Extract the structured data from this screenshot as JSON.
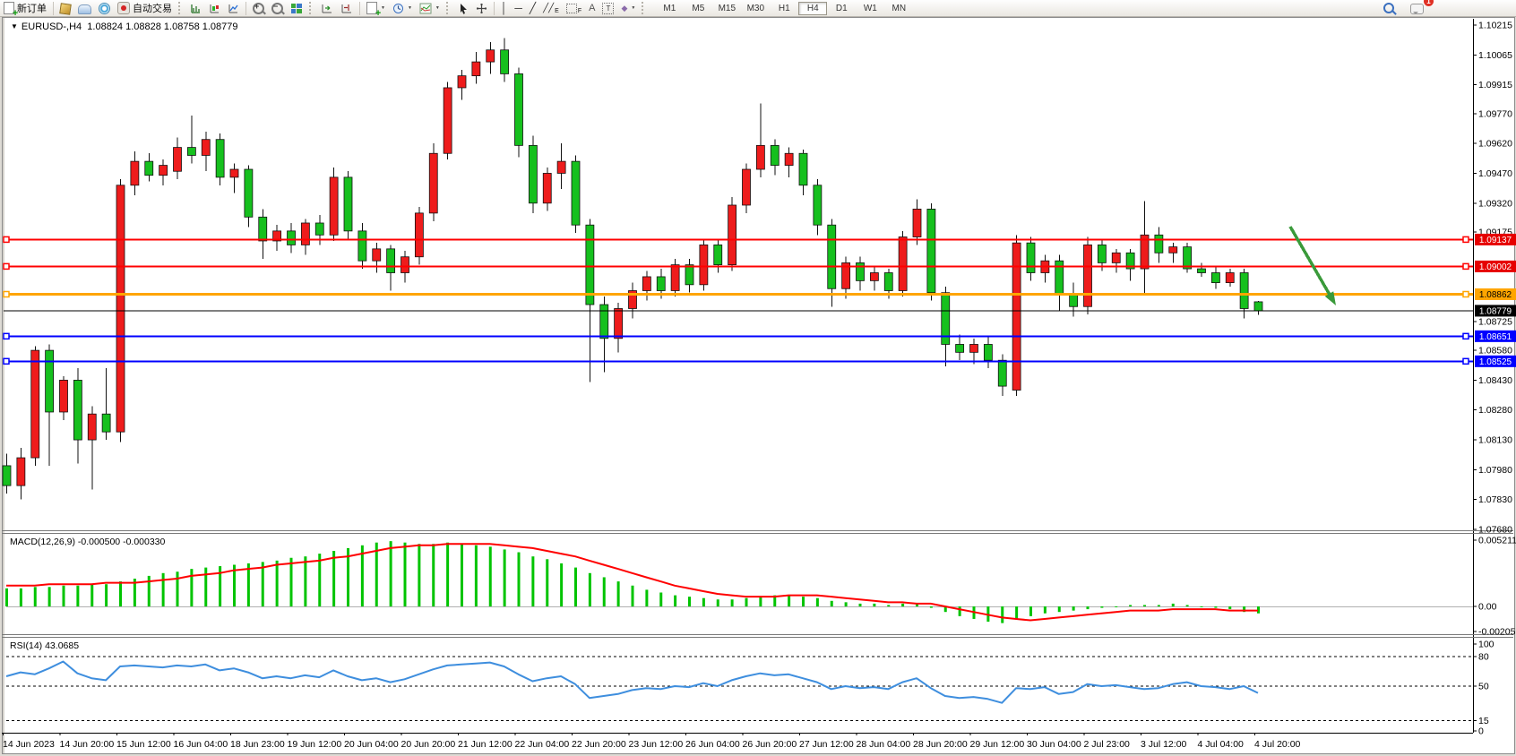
{
  "toolbar": {
    "new_order_label": "新订单",
    "autotrade_label": "自动交易",
    "timeframes": [
      {
        "label": "M1",
        "active": false
      },
      {
        "label": "M5",
        "active": false
      },
      {
        "label": "M15",
        "active": false
      },
      {
        "label": "M30",
        "active": false
      },
      {
        "label": "H1",
        "active": false
      },
      {
        "label": "H4",
        "active": true
      },
      {
        "label": "D1",
        "active": false
      },
      {
        "label": "W1",
        "active": false
      },
      {
        "label": "MN",
        "active": false
      }
    ],
    "notification_count": "1"
  },
  "chart": {
    "title_symbol": "EURUSD-,H4",
    "title_ohlc": "1.08824 1.08828 1.08758 1.08779"
  },
  "chart_data": {
    "type": "candlestick",
    "symbol": "EURUSD-",
    "timeframe": "H4",
    "current_bar": {
      "open": 1.08824,
      "high": 1.08828,
      "low": 1.08758,
      "close": 1.08779
    },
    "colors": {
      "up": "#ee1c1c",
      "down": "#16c01e",
      "wick": "#111111",
      "macd_hist": "#00c400",
      "macd_signal": "#ff0000",
      "rsi_line": "#3e8ede",
      "hline_red": "#ff0000",
      "hline_orange": "#ffa500",
      "hline_blue": "#0000ff",
      "hline_black": "#000000",
      "arrow": "#3a9a3a"
    },
    "y_axis": {
      "top_price": 1.10215,
      "bottom_price": 1.0768,
      "ticks": [
        1.10215,
        1.10065,
        1.09915,
        1.0977,
        1.0962,
        1.0947,
        1.0932,
        1.09175,
        1.08725,
        1.0858,
        1.0843,
        1.0828,
        1.0813,
        1.0798,
        1.0783,
        1.0768
      ]
    },
    "x_labels": [
      "14 Jun 2023",
      "14 Jun 20:00",
      "15 Jun 12:00",
      "16 Jun 04:00",
      "18 Jun 23:00",
      "19 Jun 12:00",
      "20 Jun 04:00",
      "20 Jun 20:00",
      "21 Jun 12:00",
      "22 Jun 04:00",
      "22 Jun 20:00",
      "23 Jun 12:00",
      "26 Jun 04:00",
      "26 Jun 20:00",
      "27 Jun 12:00",
      "28 Jun 04:00",
      "28 Jun 20:00",
      "29 Jun 12:00",
      "30 Jun 04:00",
      "2 Jul 23:00",
      "3 Jul 12:00",
      "4 Jul 04:00",
      "4 Jul 20:00"
    ],
    "candles": [
      [
        1.08,
        1.0806,
        1.0786,
        1.079
      ],
      [
        1.079,
        1.0809,
        1.0783,
        1.0804
      ],
      [
        1.0804,
        1.086,
        1.08,
        1.0858
      ],
      [
        1.0858,
        1.0861,
        1.08,
        1.0827
      ],
      [
        1.0827,
        1.0845,
        1.0823,
        1.0843
      ],
      [
        1.0843,
        1.0849,
        1.0801,
        1.0813
      ],
      [
        1.0813,
        1.083,
        1.0788,
        1.0826
      ],
      [
        1.0826,
        1.0849,
        1.0813,
        1.0817
      ],
      [
        1.0817,
        1.0944,
        1.0812,
        1.0941
      ],
      [
        1.0941,
        1.0958,
        1.0936,
        1.0953
      ],
      [
        1.0953,
        1.0957,
        1.0943,
        1.0946
      ],
      [
        1.0946,
        1.0954,
        1.0941,
        1.0951
      ],
      [
        1.0948,
        1.0965,
        1.0944,
        1.096
      ],
      [
        1.096,
        1.0976,
        1.0952,
        1.0956
      ],
      [
        1.0956,
        1.0968,
        1.0948,
        1.0964
      ],
      [
        1.0964,
        1.0967,
        1.0941,
        1.0945
      ],
      [
        1.0945,
        1.0952,
        1.0937,
        1.0949
      ],
      [
        1.0949,
        1.0951,
        1.092,
        1.0925
      ],
      [
        1.0925,
        1.0929,
        1.0904,
        1.0913
      ],
      [
        1.0913,
        1.0921,
        1.0908,
        1.0918
      ],
      [
        1.0918,
        1.0922,
        1.0907,
        1.0911
      ],
      [
        1.0911,
        1.0924,
        1.0906,
        1.0922
      ],
      [
        1.0922,
        1.0926,
        1.0911,
        1.0916
      ],
      [
        1.0916,
        1.095,
        1.0913,
        1.0945
      ],
      [
        1.0945,
        1.0948,
        1.0914,
        1.0918
      ],
      [
        1.0918,
        1.0922,
        1.0899,
        1.0903
      ],
      [
        1.0903,
        1.0912,
        1.0897,
        1.0909
      ],
      [
        1.0909,
        1.0911,
        1.0888,
        1.0897
      ],
      [
        1.0897,
        1.0908,
        1.0892,
        1.0905
      ],
      [
        1.0905,
        1.093,
        1.0901,
        1.0927
      ],
      [
        1.0927,
        1.0962,
        1.0923,
        1.0957
      ],
      [
        1.0957,
        1.0993,
        1.0954,
        1.099
      ],
      [
        1.099,
        1.0999,
        1.0984,
        1.0996
      ],
      [
        1.0996,
        1.1008,
        1.0992,
        1.1003
      ],
      [
        1.1003,
        1.1013,
        1.0997,
        1.1009
      ],
      [
        1.1009,
        1.1015,
        1.0993,
        1.0997
      ],
      [
        1.0997,
        1.1,
        1.0955,
        1.0961
      ],
      [
        1.0961,
        1.0966,
        1.0927,
        1.0932
      ],
      [
        1.0932,
        1.095,
        1.0928,
        1.0947
      ],
      [
        1.0947,
        1.0962,
        1.0939,
        1.0953
      ],
      [
        1.0953,
        1.0956,
        1.0917,
        1.0921
      ],
      [
        1.0921,
        1.0924,
        1.0842,
        1.0881
      ],
      [
        1.0881,
        1.0885,
        1.0847,
        1.0864
      ],
      [
        1.0864,
        1.0882,
        1.0857,
        1.0879
      ],
      [
        1.0879,
        1.0892,
        1.0874,
        1.0888
      ],
      [
        1.0888,
        1.0898,
        1.0883,
        1.0895
      ],
      [
        1.0895,
        1.0899,
        1.0884,
        1.0888
      ],
      [
        1.0888,
        1.0904,
        1.0885,
        1.0901
      ],
      [
        1.0901,
        1.0904,
        1.0887,
        1.0891
      ],
      [
        1.0891,
        1.0914,
        1.0888,
        1.0911
      ],
      [
        1.0911,
        1.0914,
        1.0897,
        1.0901
      ],
      [
        1.0901,
        1.0935,
        1.0898,
        1.0931
      ],
      [
        1.0931,
        1.0952,
        1.0927,
        1.0949
      ],
      [
        1.0949,
        1.0982,
        1.0945,
        1.0961
      ],
      [
        1.0961,
        1.0964,
        1.0946,
        1.0951
      ],
      [
        1.0951,
        1.096,
        1.0945,
        1.0957
      ],
      [
        1.0957,
        1.0959,
        1.0936,
        1.0941
      ],
      [
        1.0941,
        1.0944,
        1.0916,
        1.0921
      ],
      [
        1.0921,
        1.0924,
        1.088,
        1.0889
      ],
      [
        1.0889,
        1.0905,
        1.0884,
        1.0902
      ],
      [
        1.0902,
        1.0905,
        1.0888,
        1.0893
      ],
      [
        1.0893,
        1.09,
        1.0888,
        1.0897
      ],
      [
        1.0897,
        1.0899,
        1.0884,
        1.0888
      ],
      [
        1.0888,
        1.0918,
        1.0885,
        1.0915
      ],
      [
        1.0915,
        1.0934,
        1.0911,
        1.0929
      ],
      [
        1.0929,
        1.0932,
        1.0883,
        1.0887
      ],
      [
        1.0887,
        1.089,
        1.085,
        1.0861
      ],
      [
        1.0861,
        1.0866,
        1.0853,
        1.0857
      ],
      [
        1.0857,
        1.0864,
        1.0851,
        1.0861
      ],
      [
        1.0861,
        1.0865,
        1.0849,
        1.0853
      ],
      [
        1.0853,
        1.0856,
        1.0835,
        1.084
      ],
      [
        1.0838,
        1.0916,
        1.0835,
        1.0912
      ],
      [
        1.0912,
        1.0915,
        1.0893,
        1.0897
      ],
      [
        1.0897,
        1.0906,
        1.0892,
        1.0903
      ],
      [
        1.0903,
        1.0906,
        1.0878,
        1.0886
      ],
      [
        1.0886,
        1.0892,
        1.0875,
        1.088
      ],
      [
        1.088,
        1.0915,
        1.0876,
        1.0911
      ],
      [
        1.0911,
        1.0914,
        1.0898,
        1.0902
      ],
      [
        1.0902,
        1.0909,
        1.0897,
        1.0907
      ],
      [
        1.0907,
        1.0909,
        1.0893,
        1.0899
      ],
      [
        1.0899,
        1.0933,
        1.0886,
        1.0916
      ],
      [
        1.0916,
        1.092,
        1.0902,
        1.0907
      ],
      [
        1.0907,
        1.0912,
        1.0902,
        1.091
      ],
      [
        1.091,
        1.0912,
        1.0897,
        1.0899
      ],
      [
        1.0899,
        1.0902,
        1.0895,
        1.0897
      ],
      [
        1.0897,
        1.09,
        1.0889,
        1.0892
      ],
      [
        1.0892,
        1.0899,
        1.089,
        1.0897
      ],
      [
        1.0897,
        1.0899,
        1.0874,
        1.0879
      ],
      [
        1.08824,
        1.08828,
        1.08758,
        1.08779
      ]
    ],
    "h_lines": [
      {
        "price": 1.09137,
        "label": "1.09137",
        "color": "#ff0000",
        "width": 2,
        "text_color": "#ffffff"
      },
      {
        "price": 1.09002,
        "label": "1.09002",
        "color": "#ff0000",
        "width": 2,
        "text_color": "#ffffff"
      },
      {
        "price": 1.08862,
        "label": "1.08862",
        "color": "#ffa500",
        "width": 3,
        "text_color": "#000000"
      },
      {
        "price": 1.08779,
        "label": "1.08779",
        "color": "#000000",
        "width": 1,
        "text_color": "#ffffff",
        "no_handles": true
      },
      {
        "price": 1.08651,
        "label": "1.08651",
        "color": "#0000ff",
        "width": 2,
        "text_color": "#ffffff"
      },
      {
        "price": 1.08525,
        "label": "1.08525",
        "color": "#0000ff",
        "width": 2,
        "text_color": "#ffffff"
      }
    ],
    "indicators": {
      "macd": {
        "name": "MACD",
        "label": "MACD(12,26,9) -0.000500 -0.000330",
        "value_main": -0.0005,
        "value_signal": -0.00033,
        "scale_ticks": [
          "0.005211",
          "0.00",
          "-0.00205"
        ],
        "scale_values": [
          0.005211,
          0,
          -0.00205
        ],
        "histogram": [
          0.0013,
          0.0013,
          0.0014,
          0.0014,
          0.0015,
          0.0015,
          0.0016,
          0.0016,
          0.0018,
          0.002,
          0.0022,
          0.0024,
          0.0025,
          0.0027,
          0.0028,
          0.0029,
          0.003,
          0.0031,
          0.0032,
          0.0033,
          0.0035,
          0.0036,
          0.0038,
          0.004,
          0.0042,
          0.0044,
          0.0046,
          0.0047,
          0.0046,
          0.0045,
          0.0045,
          0.0046,
          0.0045,
          0.0044,
          0.0043,
          0.0041,
          0.0039,
          0.0036,
          0.0034,
          0.0031,
          0.0028,
          0.0024,
          0.0021,
          0.0018,
          0.0015,
          0.0012,
          0.001,
          0.0008,
          0.0007,
          0.0006,
          0.0005,
          0.0005,
          0.0006,
          0.0007,
          0.0008,
          0.0008,
          0.0007,
          0.0006,
          0.0004,
          0.0003,
          0.0002,
          0.0002,
          0.0001,
          0.0002,
          0.0002,
          -0.0001,
          -0.0004,
          -0.0007,
          -0.0009,
          -0.0011,
          -0.0012,
          -0.0009,
          -0.0007,
          -0.0005,
          -0.0004,
          -0.0003,
          -0.0002,
          -0.0001,
          0.0,
          0.0001,
          0.0001,
          0.0001,
          0.0002,
          0.0001,
          0.0,
          -0.0001,
          -0.0002,
          -0.0004,
          -0.0005
        ],
        "signal": [
          0.0015,
          0.0015,
          0.0015,
          0.0016,
          0.0016,
          0.0016,
          0.0016,
          0.0017,
          0.0017,
          0.0017,
          0.0018,
          0.0019,
          0.002,
          0.0022,
          0.0023,
          0.0024,
          0.0026,
          0.0027,
          0.0028,
          0.003,
          0.0031,
          0.0032,
          0.0033,
          0.0035,
          0.0036,
          0.0038,
          0.004,
          0.0042,
          0.0043,
          0.0044,
          0.0044,
          0.0045,
          0.0045,
          0.0045,
          0.0045,
          0.0044,
          0.0043,
          0.0042,
          0.004,
          0.0038,
          0.0036,
          0.0033,
          0.003,
          0.0027,
          0.0024,
          0.0021,
          0.0018,
          0.0015,
          0.0013,
          0.0011,
          0.0009,
          0.0008,
          0.0007,
          0.0007,
          0.0007,
          0.0008,
          0.0008,
          0.0008,
          0.0007,
          0.0006,
          0.0005,
          0.0004,
          0.0003,
          0.0003,
          0.0002,
          0.0002,
          0.0,
          -0.0002,
          -0.0004,
          -0.0006,
          -0.0008,
          -0.0009,
          -0.001,
          -0.0009,
          -0.0008,
          -0.0007,
          -0.0006,
          -0.0005,
          -0.0004,
          -0.0003,
          -0.0003,
          -0.0003,
          -0.0002,
          -0.0002,
          -0.0002,
          -0.0002,
          -0.0003,
          -0.0003,
          -0.0003
        ]
      },
      "rsi": {
        "name": "RSI",
        "label": "RSI(14) 43.0685",
        "value": 43.0685,
        "levels": [
          80,
          50,
          15
        ],
        "scale_ticks": [
          100,
          80,
          50,
          15,
          0
        ],
        "values": [
          60,
          64,
          62,
          68,
          75,
          63,
          58,
          56,
          70,
          71,
          70,
          69,
          71,
          70,
          72,
          66,
          68,
          64,
          58,
          60,
          58,
          61,
          59,
          66,
          60,
          56,
          58,
          54,
          57,
          62,
          67,
          71,
          72,
          73,
          74,
          70,
          62,
          55,
          58,
          60,
          52,
          38,
          40,
          42,
          46,
          48,
          47,
          50,
          49,
          53,
          50,
          56,
          60,
          63,
          61,
          62,
          58,
          54,
          47,
          50,
          48,
          49,
          47,
          54,
          58,
          48,
          40,
          38,
          39,
          37,
          33,
          48,
          47,
          49,
          42,
          44,
          52,
          50,
          51,
          49,
          47,
          48,
          52,
          54,
          50,
          49,
          47,
          50,
          43.0685
        ]
      }
    },
    "annotation_arrow": {
      "from": [
        1440,
        253
      ],
      "to": [
        1491,
        341
      ]
    }
  }
}
